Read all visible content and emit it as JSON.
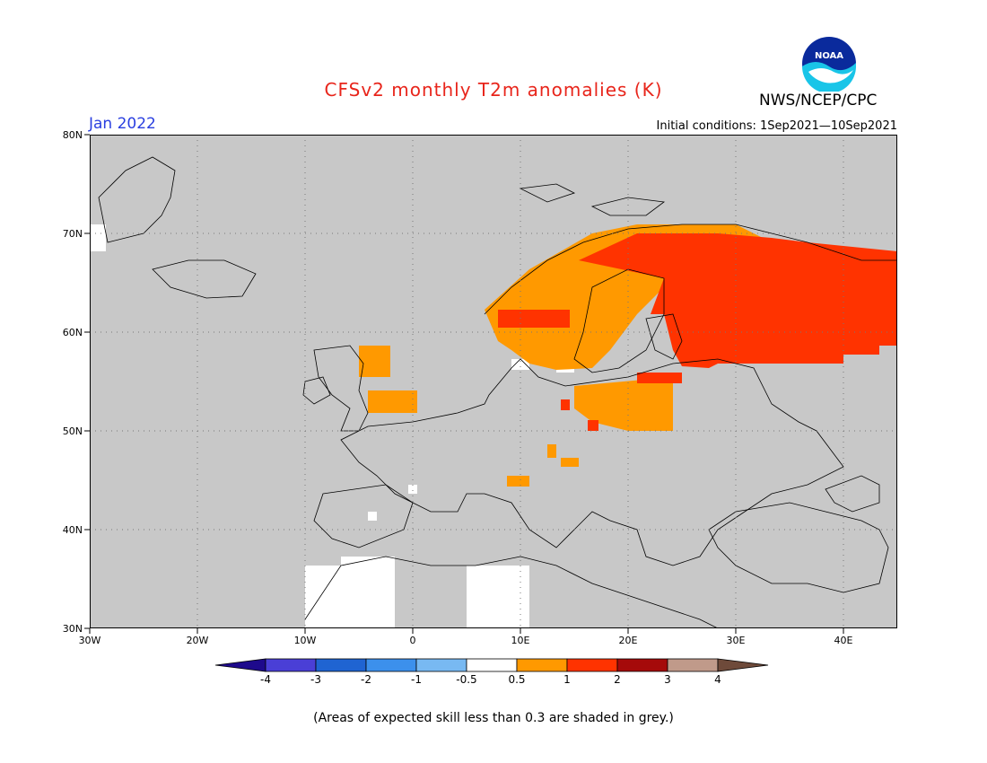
{
  "header": {
    "title": "CFSv2 monthly T2m anomalies (K)",
    "agency": "NWS/NCEP/CPC",
    "logo_text": "NOAA",
    "month": "Jan 2022",
    "initial_conditions": "Initial conditions: 1Sep2021—10Sep2021"
  },
  "map": {
    "lat_ticks": [
      "80N",
      "70N",
      "60N",
      "50N",
      "40N",
      "30N"
    ],
    "lon_ticks": [
      "30W",
      "20W",
      "10W",
      "0",
      "10E",
      "20E",
      "30E",
      "40E"
    ],
    "extent": {
      "lon_min": -30,
      "lon_max": 45,
      "lat_min": 30,
      "lat_max": 80
    },
    "background_color": "#c8c8c8",
    "regions": [
      {
        "name": "Scandinavia",
        "category": "0.5 to 1"
      },
      {
        "name": "Finland and NW Russia",
        "category": "1 to 2"
      },
      {
        "name": "Baltic / Poland",
        "category": "0.5 to 1"
      },
      {
        "name": "Scotland / N England",
        "category": "0.5 to 1"
      },
      {
        "name": "North Africa",
        "category": "-0.5 to 0.5"
      }
    ]
  },
  "colorbar": {
    "ticks": [
      "-4",
      "-3",
      "-2",
      "-1",
      "-0.5",
      "0.5",
      "1",
      "2",
      "3",
      "4"
    ],
    "colors": [
      "#1e0a8c",
      "#4a3fd6",
      "#1f64d2",
      "#3c90ec",
      "#78b9f2",
      "#ffffff",
      "#ff9900",
      "#ff3300",
      "#a50a0a",
      "#c09a8a",
      "#6e4a3a"
    ]
  },
  "footnote": "(Areas of expected skill less than 0.3 are shaded in grey.)"
}
